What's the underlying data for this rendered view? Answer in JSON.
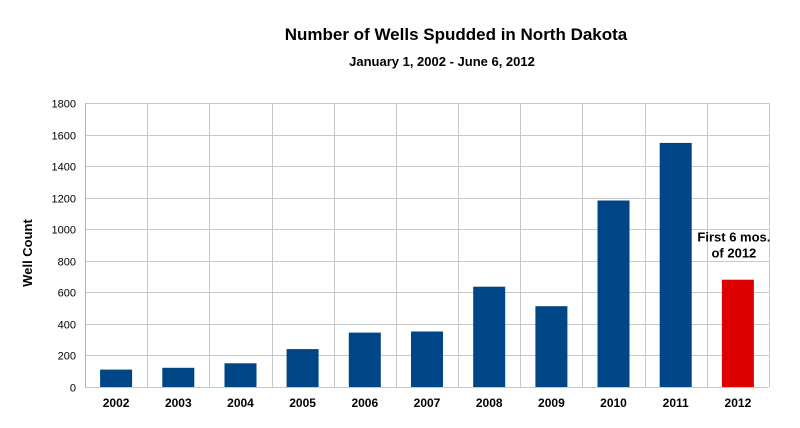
{
  "chart_data": {
    "type": "bar",
    "title": "Number of Wells Spudded in North Dakota",
    "subtitle": "January 1, 2002 - June 6, 2012",
    "xlabel": "",
    "ylabel": "Well Count",
    "categories": [
      "2002",
      "2003",
      "2004",
      "2005",
      "2006",
      "2007",
      "2008",
      "2009",
      "2010",
      "2011",
      "2012"
    ],
    "values": [
      110,
      122,
      150,
      240,
      345,
      352,
      636,
      512,
      1182,
      1547,
      680
    ],
    "ylim": [
      0,
      1800
    ],
    "yticks": [
      0,
      200,
      400,
      600,
      800,
      1000,
      1200,
      1400,
      1600,
      1800
    ],
    "grid": true,
    "legend": "none",
    "bar_color": "#004586",
    "highlight_color": "#dd0000",
    "highlight_index": 10,
    "annotation": {
      "lines": [
        "First 6 mos.",
        "of 2012"
      ],
      "category": "2012"
    }
  }
}
